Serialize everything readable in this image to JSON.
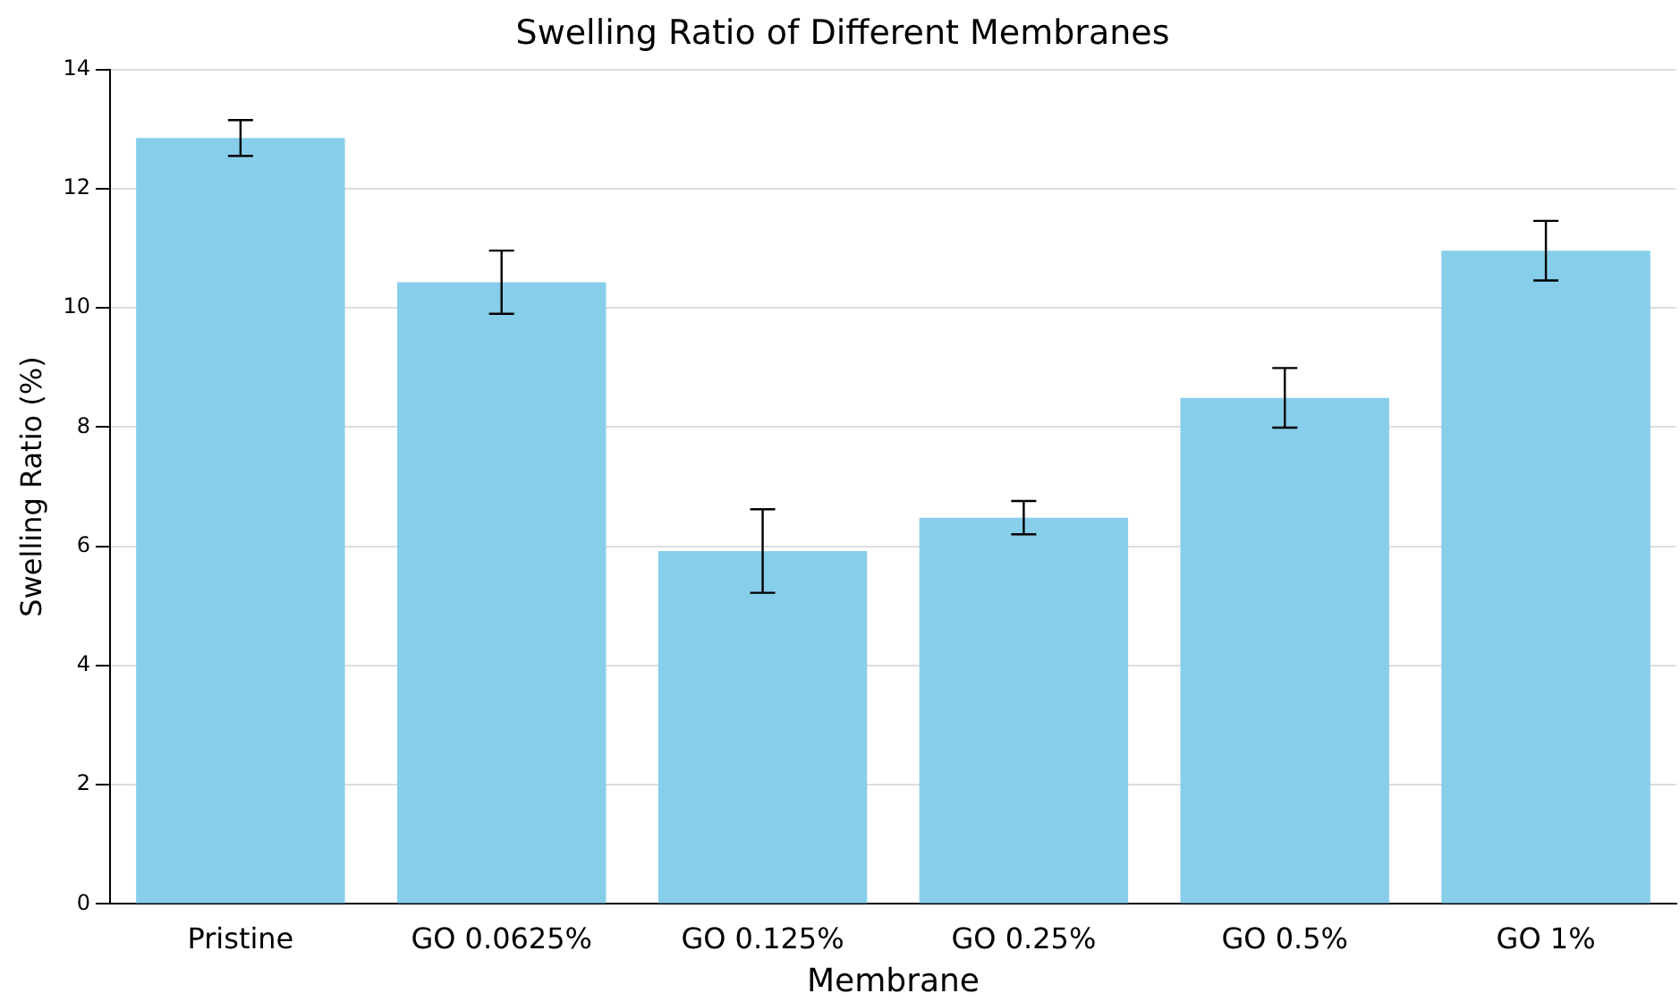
{
  "chart_data": {
    "type": "bar",
    "title": "Swelling Ratio of Different Membranes",
    "xlabel": "Membrane",
    "ylabel": "Swelling Ratio (%)",
    "categories": [
      "Pristine",
      "GO 0.0625%",
      "GO 0.125%",
      "GO 0.25%",
      "GO 0.5%",
      "GO 1%"
    ],
    "values": [
      12.85,
      10.43,
      5.92,
      6.48,
      8.49,
      10.96
    ],
    "errors": [
      0.3,
      0.53,
      0.7,
      0.28,
      0.5,
      0.5
    ],
    "color": "#87ceeb",
    "ylim": [
      0,
      14
    ],
    "yticks": [
      0,
      2,
      4,
      6,
      8,
      10,
      12,
      14
    ],
    "grid": "y",
    "legend": false
  }
}
